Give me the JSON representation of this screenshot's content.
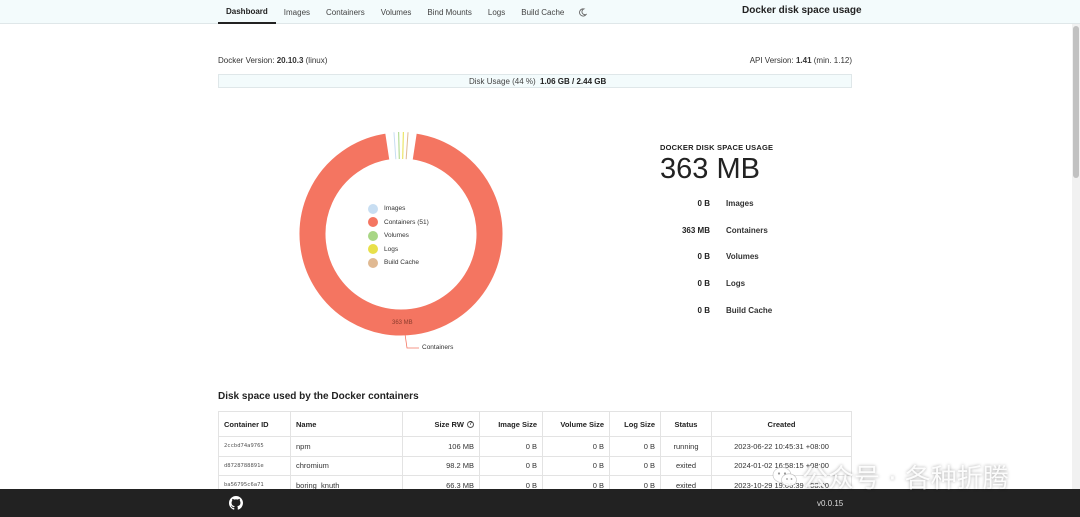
{
  "nav": {
    "tabs": [
      {
        "label": "Dashboard"
      },
      {
        "label": "Images"
      },
      {
        "label": "Containers"
      },
      {
        "label": "Volumes"
      },
      {
        "label": "Bind Mounts"
      },
      {
        "label": "Logs"
      },
      {
        "label": "Build Cache"
      }
    ],
    "theme_icon": "moon-icon"
  },
  "app_title": "Docker disk space usage",
  "versions": {
    "docker_label": "Docker Version:",
    "docker_value": "20.10.3",
    "docker_os": "(linux)",
    "api_label": "API Version:",
    "api_value": "1.41",
    "api_min": "(min. 1.12)"
  },
  "disk_usage": {
    "label": "Disk Usage (44 %)",
    "value": "1.06 GB / 2.44 GB",
    "percent": 44
  },
  "chart_data": {
    "type": "pie",
    "categories": [
      "Images",
      "Containers",
      "Volumes",
      "Logs",
      "Build Cache"
    ],
    "legend_labels": [
      "Images",
      "Containers (51)",
      "Volumes",
      "Logs",
      "Build Cache"
    ],
    "values": [
      0,
      363,
      0,
      0,
      0
    ],
    "unit": "MB",
    "colors": [
      "#c8def2",
      "#f47561",
      "#a8d685",
      "#e8e04a",
      "#e0b992"
    ],
    "slice_label": "363 MB",
    "callout_label": "Containers",
    "legend_position": "center"
  },
  "summary": {
    "heading": "DOCKER DISK SPACE USAGE",
    "total": "363 MB",
    "rows": [
      {
        "value": "0 B",
        "label": "Images"
      },
      {
        "value": "363 MB",
        "label": "Containers"
      },
      {
        "value": "0 B",
        "label": "Volumes"
      },
      {
        "value": "0 B",
        "label": "Logs"
      },
      {
        "value": "0 B",
        "label": "Build Cache"
      }
    ]
  },
  "containers_section": {
    "title": "Disk space used by the Docker containers",
    "columns": [
      "Container ID",
      "Name",
      "Size RW",
      "Image Size",
      "Volume Size",
      "Log Size",
      "Status",
      "Created"
    ],
    "rows": [
      {
        "id": "2ccbd74a9765",
        "name": "npm",
        "size_rw": "106 MB",
        "image_size": "0 B",
        "volume_size": "0 B",
        "log_size": "0 B",
        "status": "running",
        "created": "2023-06-22 10:45:31 +08:00"
      },
      {
        "id": "d8728788891e",
        "name": "chromium",
        "size_rw": "98.2 MB",
        "image_size": "0 B",
        "volume_size": "0 B",
        "log_size": "0 B",
        "status": "exited",
        "created": "2024-01-02 16:58:15 +08:00"
      },
      {
        "id": "ba56795c6a71",
        "name": "boring_knuth",
        "size_rw": "66.3 MB",
        "image_size": "0 B",
        "volume_size": "0 B",
        "log_size": "0 B",
        "status": "exited",
        "created": "2023-10-29 19:06:39 +08:00"
      }
    ]
  },
  "footer": {
    "github_icon": "github-icon",
    "version": "v0.0.15"
  },
  "watermark": {
    "text": "公众号 · 各种折腾",
    "icon": "wechat-logo"
  }
}
